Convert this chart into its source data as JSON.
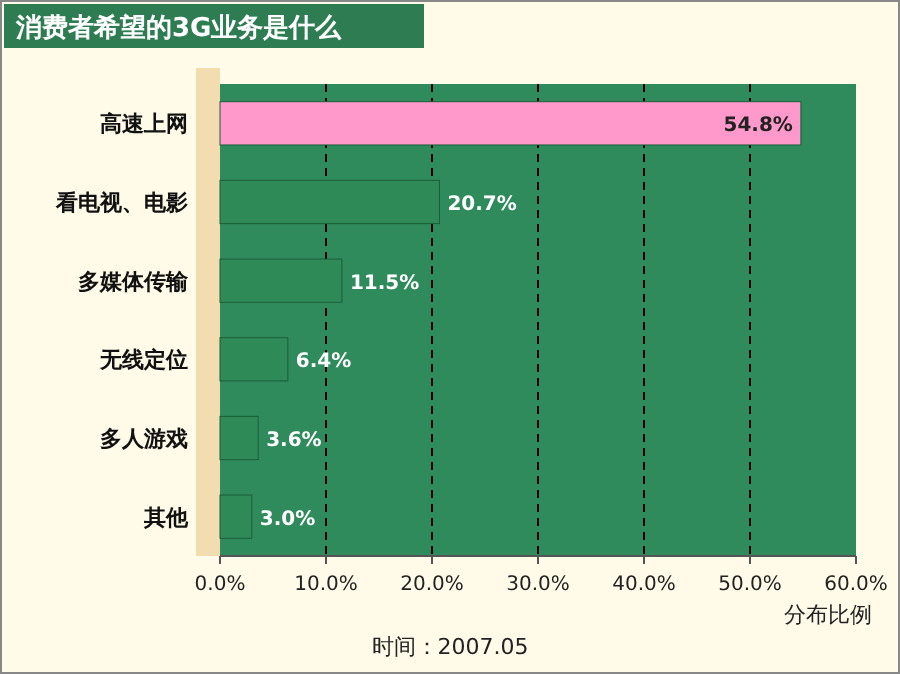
{
  "chart_data": {
    "type": "bar",
    "orientation": "horizontal",
    "title": "消费者希望的3G业务是什么",
    "xlabel": "分布比例",
    "categories": [
      "高速上网",
      "看电视、电影",
      "多媒体传输",
      "无线定位",
      "多人游戏",
      "其他"
    ],
    "values": [
      54.8,
      20.7,
      11.5,
      6.4,
      3.6,
      3.0
    ],
    "colors": [
      "#ff99cc",
      "#2e8b57",
      "#2e8b57",
      "#2e8b57",
      "#2e8b57",
      "#2e8b57"
    ],
    "value_labels": [
      "54.8%",
      "20.7%",
      "11.5%",
      "6.4%",
      "3.6%",
      "3.0%"
    ],
    "xlim": [
      0,
      60
    ],
    "xticks": [
      {
        "value": 0,
        "label": "0.0%"
      },
      {
        "value": 10,
        "label": "10.0%"
      },
      {
        "value": 20,
        "label": "20.0%"
      },
      {
        "value": 30,
        "label": "30.0%"
      },
      {
        "value": 40,
        "label": "40.0%"
      },
      {
        "value": 50,
        "label": "50.0%"
      },
      {
        "value": 60,
        "label": "60.0%"
      }
    ],
    "grid": "x",
    "annotations": [
      "时间：2007.05"
    ]
  }
}
